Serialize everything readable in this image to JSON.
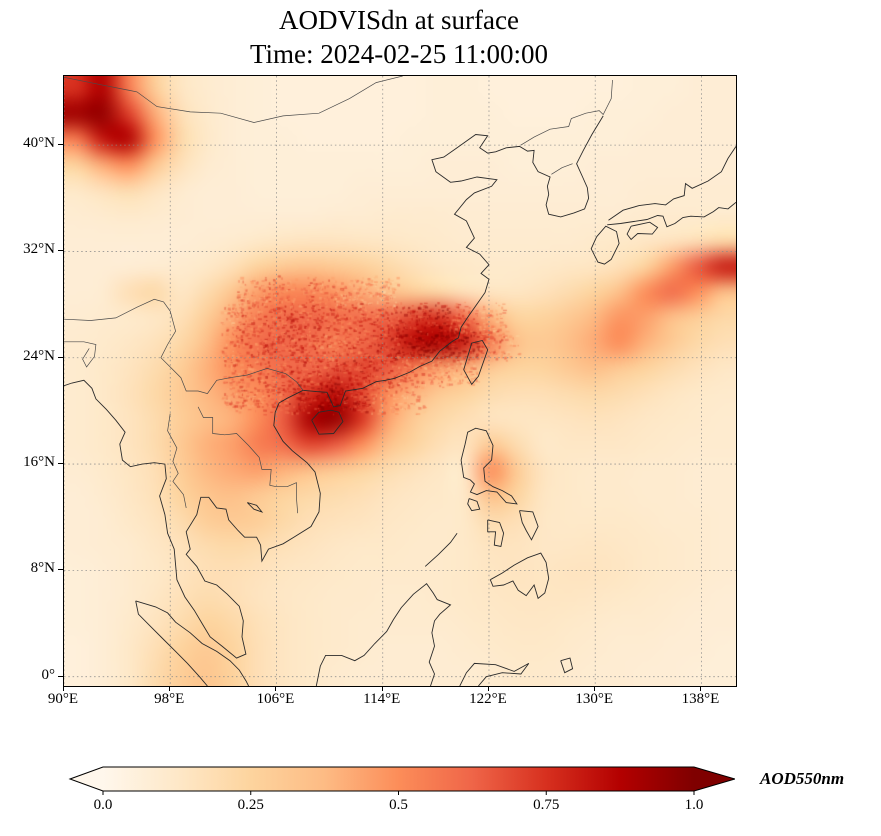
{
  "chart_data": {
    "type": "heatmap",
    "title": "AODVISdn at surface",
    "subtitle": "Time: 2024-02-25 11:00:00",
    "xlabel": "",
    "ylabel": "",
    "lon_range": [
      90,
      140.6
    ],
    "lat_range": [
      -0.7,
      45.2
    ],
    "grid": true,
    "xtick_labels": [
      "90°E",
      "98°E",
      "106°E",
      "114°E",
      "122°E",
      "130°E",
      "138°E"
    ],
    "xtick_lons": [
      90,
      98,
      106,
      114,
      122,
      130,
      138
    ],
    "ytick_labels": [
      "0°",
      "8°N",
      "16°N",
      "24°N",
      "32°N",
      "40°N"
    ],
    "ytick_lats": [
      0,
      8,
      16,
      24,
      32,
      40
    ],
    "colormap": "OrRd",
    "colormap_stops": [
      "#fff7ec",
      "#fee8c8",
      "#fdd49e",
      "#fdbb84",
      "#fc8d59",
      "#ef6548",
      "#d7301f",
      "#b30000",
      "#7f0000"
    ],
    "colorbar": {
      "label": "AOD550nm",
      "tick_labels": [
        "0.0",
        "0.25",
        "0.5",
        "0.75",
        "1.0"
      ],
      "ticks": [
        0,
        0.25,
        0.5,
        0.75,
        1.0
      ],
      "extend": "both",
      "under_color": "#fffdf9",
      "over_color": "#7f0000"
    },
    "grid_lons": [
      90,
      92,
      94,
      96,
      98,
      100,
      102,
      104,
      106,
      108,
      110,
      112,
      114,
      116,
      118,
      120,
      122,
      124,
      126,
      128,
      130,
      132,
      134,
      136,
      138,
      140
    ],
    "grid_lats": [
      45,
      43,
      41,
      39,
      37,
      35,
      33,
      31,
      29,
      27,
      25,
      23,
      21,
      19,
      17,
      15,
      13,
      11,
      9,
      7,
      5,
      3,
      1,
      -1
    ],
    "values": [
      [
        0.75,
        0.88,
        0.55,
        0.28,
        0.14,
        0.1,
        0.08,
        0.07,
        0.06,
        0.06,
        0.06,
        0.06,
        0.06,
        0.06,
        0.07,
        0.07,
        0.06,
        0.06,
        0.06,
        0.06,
        0.06,
        0.06,
        0.07,
        0.07,
        0.08,
        0.08
      ],
      [
        0.92,
        0.95,
        0.72,
        0.42,
        0.18,
        0.11,
        0.08,
        0.07,
        0.06,
        0.06,
        0.06,
        0.06,
        0.06,
        0.06,
        0.07,
        0.07,
        0.07,
        0.06,
        0.06,
        0.06,
        0.07,
        0.07,
        0.07,
        0.08,
        0.08,
        0.08
      ],
      [
        0.55,
        0.82,
        0.88,
        0.5,
        0.22,
        0.12,
        0.08,
        0.07,
        0.07,
        0.06,
        0.06,
        0.06,
        0.06,
        0.07,
        0.07,
        0.07,
        0.07,
        0.07,
        0.07,
        0.07,
        0.07,
        0.07,
        0.08,
        0.08,
        0.08,
        0.08
      ],
      [
        0.25,
        0.42,
        0.5,
        0.32,
        0.17,
        0.1,
        0.08,
        0.07,
        0.07,
        0.07,
        0.07,
        0.07,
        0.07,
        0.07,
        0.08,
        0.08,
        0.08,
        0.07,
        0.07,
        0.07,
        0.08,
        0.08,
        0.08,
        0.08,
        0.08,
        0.08
      ],
      [
        0.12,
        0.16,
        0.2,
        0.15,
        0.1,
        0.08,
        0.08,
        0.07,
        0.07,
        0.07,
        0.07,
        0.08,
        0.08,
        0.08,
        0.08,
        0.08,
        0.08,
        0.08,
        0.08,
        0.08,
        0.08,
        0.08,
        0.09,
        0.09,
        0.09,
        0.09
      ],
      [
        0.09,
        0.1,
        0.11,
        0.1,
        0.09,
        0.08,
        0.08,
        0.08,
        0.08,
        0.08,
        0.09,
        0.09,
        0.1,
        0.1,
        0.1,
        0.09,
        0.09,
        0.09,
        0.09,
        0.09,
        0.09,
        0.09,
        0.1,
        0.1,
        0.1,
        0.1
      ],
      [
        0.08,
        0.08,
        0.08,
        0.08,
        0.08,
        0.09,
        0.1,
        0.12,
        0.14,
        0.15,
        0.15,
        0.14,
        0.13,
        0.12,
        0.11,
        0.1,
        0.1,
        0.1,
        0.1,
        0.1,
        0.11,
        0.12,
        0.13,
        0.15,
        0.18,
        0.22
      ],
      [
        0.08,
        0.08,
        0.08,
        0.09,
        0.1,
        0.12,
        0.17,
        0.25,
        0.3,
        0.32,
        0.3,
        0.27,
        0.22,
        0.17,
        0.13,
        0.12,
        0.11,
        0.11,
        0.12,
        0.13,
        0.14,
        0.17,
        0.25,
        0.45,
        0.65,
        0.8
      ],
      [
        0.08,
        0.09,
        0.18,
        0.22,
        0.13,
        0.2,
        0.32,
        0.45,
        0.52,
        0.52,
        0.48,
        0.42,
        0.35,
        0.28,
        0.22,
        0.16,
        0.14,
        0.14,
        0.16,
        0.2,
        0.25,
        0.35,
        0.5,
        0.6,
        0.5,
        0.35
      ],
      [
        0.09,
        0.1,
        0.11,
        0.13,
        0.17,
        0.28,
        0.42,
        0.55,
        0.6,
        0.62,
        0.6,
        0.6,
        0.62,
        0.7,
        0.75,
        0.6,
        0.4,
        0.25,
        0.25,
        0.3,
        0.38,
        0.48,
        0.45,
        0.35,
        0.28,
        0.22
      ],
      [
        0.1,
        0.11,
        0.13,
        0.16,
        0.22,
        0.35,
        0.5,
        0.6,
        0.62,
        0.6,
        0.55,
        0.6,
        0.7,
        0.85,
        0.9,
        0.8,
        0.55,
        0.35,
        0.3,
        0.35,
        0.42,
        0.5,
        0.4,
        0.3,
        0.22,
        0.18
      ],
      [
        0.1,
        0.12,
        0.15,
        0.2,
        0.28,
        0.4,
        0.5,
        0.55,
        0.6,
        0.62,
        0.65,
        0.7,
        0.65,
        0.55,
        0.45,
        0.4,
        0.3,
        0.25,
        0.25,
        0.3,
        0.35,
        0.3,
        0.25,
        0.2,
        0.16,
        0.13
      ],
      [
        0.1,
        0.12,
        0.16,
        0.22,
        0.3,
        0.38,
        0.45,
        0.5,
        0.6,
        0.75,
        0.85,
        0.7,
        0.5,
        0.4,
        0.3,
        0.25,
        0.2,
        0.18,
        0.18,
        0.2,
        0.22,
        0.2,
        0.17,
        0.14,
        0.12,
        0.11
      ],
      [
        0.1,
        0.12,
        0.15,
        0.2,
        0.28,
        0.35,
        0.4,
        0.5,
        0.65,
        0.9,
        0.95,
        0.75,
        0.45,
        0.3,
        0.22,
        0.18,
        0.15,
        0.14,
        0.14,
        0.15,
        0.16,
        0.15,
        0.13,
        0.12,
        0.11,
        0.1
      ],
      [
        0.1,
        0.12,
        0.15,
        0.2,
        0.3,
        0.4,
        0.45,
        0.55,
        0.6,
        0.7,
        0.65,
        0.5,
        0.35,
        0.25,
        0.18,
        0.15,
        0.3,
        0.2,
        0.12,
        0.13,
        0.13,
        0.13,
        0.12,
        0.11,
        0.1,
        0.1
      ],
      [
        0.09,
        0.11,
        0.14,
        0.18,
        0.28,
        0.38,
        0.42,
        0.45,
        0.4,
        0.35,
        0.3,
        0.25,
        0.2,
        0.16,
        0.13,
        0.12,
        0.5,
        0.3,
        0.15,
        0.12,
        0.11,
        0.11,
        0.1,
        0.1,
        0.09,
        0.09
      ],
      [
        0.08,
        0.1,
        0.13,
        0.17,
        0.25,
        0.32,
        0.35,
        0.3,
        0.25,
        0.22,
        0.2,
        0.18,
        0.15,
        0.13,
        0.12,
        0.12,
        0.35,
        0.25,
        0.14,
        0.12,
        0.11,
        0.11,
        0.1,
        0.1,
        0.09,
        0.09
      ],
      [
        0.08,
        0.09,
        0.12,
        0.15,
        0.2,
        0.28,
        0.3,
        0.28,
        0.22,
        0.18,
        0.16,
        0.15,
        0.13,
        0.12,
        0.11,
        0.12,
        0.2,
        0.18,
        0.13,
        0.12,
        0.12,
        0.12,
        0.11,
        0.1,
        0.1,
        0.09
      ],
      [
        0.08,
        0.09,
        0.1,
        0.13,
        0.16,
        0.2,
        0.22,
        0.2,
        0.17,
        0.15,
        0.13,
        0.12,
        0.12,
        0.11,
        0.11,
        0.12,
        0.15,
        0.15,
        0.13,
        0.13,
        0.14,
        0.13,
        0.12,
        0.11,
        0.1,
        0.09
      ],
      [
        0.07,
        0.08,
        0.1,
        0.12,
        0.15,
        0.18,
        0.18,
        0.16,
        0.14,
        0.13,
        0.12,
        0.11,
        0.11,
        0.11,
        0.11,
        0.12,
        0.14,
        0.15,
        0.14,
        0.15,
        0.15,
        0.14,
        0.12,
        0.11,
        0.1,
        0.09
      ],
      [
        0.07,
        0.08,
        0.1,
        0.13,
        0.17,
        0.2,
        0.18,
        0.15,
        0.13,
        0.12,
        0.11,
        0.11,
        0.1,
        0.1,
        0.11,
        0.12,
        0.13,
        0.14,
        0.14,
        0.14,
        0.13,
        0.12,
        0.11,
        0.1,
        0.09,
        0.08
      ],
      [
        0.07,
        0.08,
        0.11,
        0.15,
        0.2,
        0.25,
        0.22,
        0.17,
        0.14,
        0.12,
        0.11,
        0.1,
        0.1,
        0.1,
        0.1,
        0.11,
        0.12,
        0.13,
        0.13,
        0.12,
        0.11,
        0.1,
        0.1,
        0.09,
        0.08,
        0.08
      ],
      [
        0.06,
        0.08,
        0.12,
        0.18,
        0.25,
        0.3,
        0.25,
        0.18,
        0.14,
        0.12,
        0.11,
        0.1,
        0.09,
        0.09,
        0.09,
        0.1,
        0.11,
        0.12,
        0.12,
        0.11,
        0.1,
        0.09,
        0.09,
        0.08,
        0.08,
        0.07
      ],
      [
        0.06,
        0.08,
        0.12,
        0.2,
        0.28,
        0.32,
        0.26,
        0.18,
        0.14,
        0.12,
        0.1,
        0.09,
        0.09,
        0.09,
        0.09,
        0.09,
        0.1,
        0.11,
        0.11,
        0.1,
        0.09,
        0.09,
        0.08,
        0.08,
        0.07,
        0.07
      ]
    ]
  }
}
